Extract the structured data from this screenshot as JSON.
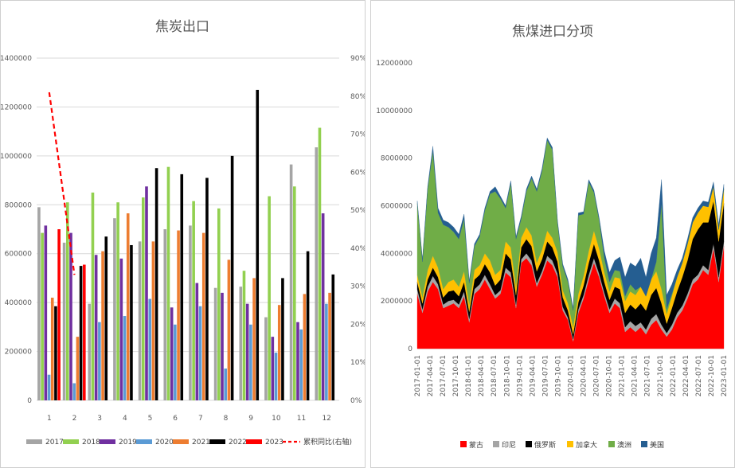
{
  "chart_data": [
    {
      "type": "bar",
      "title": "焦炭出口",
      "categories": [
        "1",
        "2",
        "3",
        "4",
        "5",
        "6",
        "7",
        "8",
        "9",
        "10",
        "11",
        "12"
      ],
      "ylim": [
        0,
        1400000
      ],
      "y_ticks": [
        "0",
        "200000",
        "400000",
        "600000",
        "800000",
        "1000000",
        "1200000",
        "1400000"
      ],
      "y2lim": [
        0,
        90
      ],
      "y2_ticks": [
        "0%",
        "10%",
        "20%",
        "30%",
        "40%",
        "50%",
        "60%",
        "70%",
        "80%",
        "90%"
      ],
      "legend_position": "bottom",
      "series": [
        {
          "name": "2017",
          "color": "#a5a5a5",
          "values": [
            790000,
            645000,
            395000,
            745000,
            650000,
            700000,
            715000,
            460000,
            465000,
            340000,
            965000,
            1035000
          ]
        },
        {
          "name": "2018",
          "color": "#92d050",
          "values": [
            685000,
            810000,
            850000,
            810000,
            830000,
            955000,
            815000,
            785000,
            530000,
            835000,
            875000,
            1115000
          ]
        },
        {
          "name": "2019",
          "color": "#7030a0",
          "values": [
            715000,
            685000,
            595000,
            580000,
            875000,
            380000,
            480000,
            440000,
            395000,
            260000,
            320000,
            765000
          ]
        },
        {
          "name": "2020",
          "color": "#5b9bd5",
          "values": [
            105000,
            70000,
            320000,
            345000,
            415000,
            310000,
            385000,
            130000,
            310000,
            195000,
            290000,
            395000
          ]
        },
        {
          "name": "2021",
          "color": "#ed7d31",
          "values": [
            420000,
            260000,
            610000,
            765000,
            650000,
            695000,
            685000,
            575000,
            500000,
            390000,
            435000,
            440000
          ]
        },
        {
          "name": "2022",
          "color": "#000000",
          "values": [
            385000,
            550000,
            670000,
            635000,
            950000,
            925000,
            910000,
            1000000,
            1270000,
            500000,
            610000,
            515000
          ]
        },
        {
          "name": "2023",
          "color": "#ff0000",
          "values": [
            700000,
            555000,
            null,
            null,
            null,
            null,
            null,
            null,
            null,
            null,
            null,
            null
          ]
        }
      ],
      "line_series": {
        "name": "累积同比(右轴)",
        "color": "#ff0000",
        "axis": "right",
        "values": [
          81,
          33
        ]
      }
    },
    {
      "type": "area",
      "title": "焦煤进口分项",
      "ylim": [
        0,
        12000000
      ],
      "y_ticks": [
        "0",
        "2000000",
        "4000000",
        "6000000",
        "8000000",
        "10000000",
        "12000000"
      ],
      "x_labels": [
        "2017-01-01",
        "2017-04-01",
        "2017-07-01",
        "2017-10-01",
        "2018-01-01",
        "2018-04-01",
        "2018-07-01",
        "2018-10-01",
        "2019-01-01",
        "2019-04-01",
        "2019-07-01",
        "2019-10-01",
        "2020-01-01",
        "2020-04-01",
        "2020-07-01",
        "2020-10-01",
        "2021-01-01",
        "2021-04-01",
        "2021-07-01",
        "2021-10-01",
        "2022-01-01",
        "2022-04-01",
        "2022-07-01",
        "2022-10-01",
        "2023-01-01"
      ],
      "stacked": true,
      "legend_position": "bottom",
      "series": [
        {
          "name": "蒙古",
          "color": "#ff0000",
          "values": [
            2300000,
            1500000,
            2400000,
            2800000,
            2500000,
            1700000,
            1800000,
            1900000,
            1700000,
            2200000,
            1100000,
            2300000,
            2500000,
            2900000,
            2500000,
            2100000,
            2300000,
            3200000,
            3000000,
            1700000,
            3600000,
            3800000,
            3500000,
            2600000,
            3100000,
            3700000,
            3500000,
            3000000,
            1600000,
            1200000,
            300000,
            1500000,
            2100000,
            2900000,
            3600000,
            3000000,
            2200000,
            1500000,
            1900000,
            1700000,
            700000,
            900000,
            700000,
            900000,
            600000,
            1000000,
            1200000,
            800000,
            500000,
            800000,
            1300000,
            1600000,
            2100000,
            2700000,
            2900000,
            3300000,
            3100000,
            4200000,
            2800000,
            4300000
          ]
        },
        {
          "name": "印尼",
          "color": "#a5a5a5",
          "values": [
            200000,
            150000,
            200000,
            250000,
            200000,
            150000,
            200000,
            150000,
            150000,
            200000,
            150000,
            200000,
            200000,
            200000,
            200000,
            150000,
            150000,
            200000,
            200000,
            150000,
            150000,
            200000,
            200000,
            150000,
            150000,
            200000,
            200000,
            150000,
            150000,
            100000,
            100000,
            150000,
            150000,
            200000,
            200000,
            150000,
            150000,
            150000,
            200000,
            200000,
            200000,
            250000,
            250000,
            200000,
            200000,
            250000,
            250000,
            200000,
            150000,
            200000,
            200000,
            200000,
            200000,
            200000,
            200000,
            200000,
            200000,
            200000,
            200000,
            200000
          ]
        },
        {
          "name": "俄罗斯",
          "color": "#000000",
          "values": [
            300000,
            250000,
            300000,
            350000,
            300000,
            300000,
            400000,
            400000,
            350000,
            400000,
            300000,
            400000,
            400000,
            450000,
            500000,
            400000,
            450000,
            600000,
            550000,
            400000,
            500000,
            600000,
            600000,
            500000,
            500000,
            600000,
            550000,
            500000,
            400000,
            300000,
            200000,
            300000,
            400000,
            500000,
            600000,
            550000,
            450000,
            400000,
            500000,
            600000,
            600000,
            700000,
            700000,
            800000,
            800000,
            1000000,
            1100000,
            900000,
            400000,
            700000,
            900000,
            1200000,
            1400000,
            1700000,
            1900000,
            1800000,
            2000000,
            1800000,
            1500000,
            1600000
          ]
        },
        {
          "name": "加拿大",
          "color": "#ffc000",
          "values": [
            300000,
            250000,
            400000,
            500000,
            400000,
            350000,
            400000,
            450000,
            400000,
            450000,
            300000,
            400000,
            400000,
            450000,
            500000,
            450000,
            400000,
            500000,
            500000,
            350000,
            400000,
            500000,
            450000,
            350000,
            400000,
            450000,
            400000,
            400000,
            300000,
            300000,
            300000,
            350000,
            400000,
            500000,
            550000,
            500000,
            400000,
            350000,
            400000,
            450000,
            500000,
            550000,
            600000,
            700000,
            600000,
            650000,
            700000,
            600000,
            400000,
            500000,
            600000,
            600000,
            700000,
            700000,
            700000,
            700000,
            650000,
            600000,
            500000,
            600000
          ]
        },
        {
          "name": "澳洲",
          "color": "#70ad47",
          "values": [
            3000000,
            1500000,
            3400000,
            4400000,
            2300000,
            2700000,
            2300000,
            2000000,
            2000000,
            2200000,
            900000,
            1000000,
            1200000,
            1800000,
            2800000,
            3500000,
            3000000,
            1400000,
            2700000,
            2000000,
            800000,
            1500000,
            2400000,
            3000000,
            3300000,
            3800000,
            3700000,
            1200000,
            1000000,
            900000,
            700000,
            3300000,
            2600000,
            2900000,
            1600000,
            1200000,
            600000,
            400000,
            300000,
            300000,
            200000,
            300000,
            200000,
            0,
            0,
            0,
            400000,
            3600000,
            200000,
            100000,
            0,
            0,
            0,
            0,
            0,
            0,
            0,
            0,
            0,
            0
          ]
        },
        {
          "name": "美国",
          "color": "#255e91",
          "values": [
            100000,
            100000,
            100000,
            200000,
            200000,
            200000,
            200000,
            200000,
            200000,
            200000,
            100000,
            100000,
            100000,
            100000,
            100000,
            200000,
            100000,
            100000,
            100000,
            100000,
            100000,
            100000,
            100000,
            100000,
            100000,
            100000,
            100000,
            100000,
            100000,
            100000,
            100000,
            100000,
            100000,
            100000,
            100000,
            100000,
            300000,
            400000,
            400000,
            600000,
            800000,
            900000,
            1000000,
            1200000,
            800000,
            1100000,
            1000000,
            1000000,
            600000,
            400000,
            300000,
            200000,
            200000,
            200000,
            200000,
            200000,
            200000,
            200000,
            200000,
            200000
          ]
        }
      ]
    }
  ]
}
